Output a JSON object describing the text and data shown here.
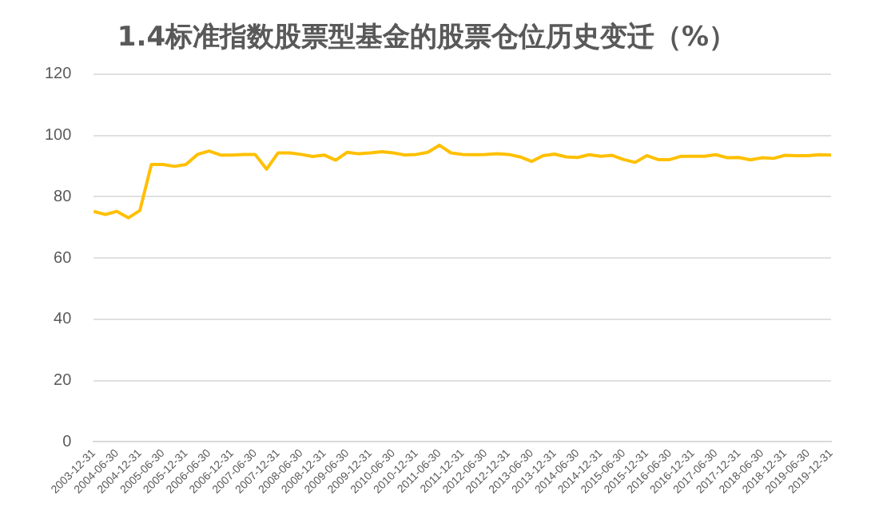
{
  "chart_data": {
    "type": "line",
    "title": "1.4标准指数股票型基金的股票仓位历史变迁（%）",
    "categories": [
      "2003-12-31",
      null,
      "2004-06-30",
      null,
      "2004-12-31",
      null,
      "2005-06-30",
      null,
      "2005-12-31",
      null,
      "2006-06-30",
      null,
      "2006-12-31",
      null,
      "2007-06-30",
      null,
      "2007-12-31",
      null,
      "2008-06-30",
      null,
      "2008-12-31",
      null,
      "2009-06-30",
      null,
      "2009-12-31",
      null,
      "2010-06-30",
      null,
      "2010-12-31",
      null,
      "2011-06-30",
      null,
      "2011-12-31",
      null,
      "2012-06-30",
      null,
      "2012-12-31",
      null,
      "2013-06-30",
      null,
      "2013-12-31",
      null,
      "2014-06-30",
      null,
      "2014-12-31",
      null,
      "2015-06-30",
      null,
      "2015-12-31",
      null,
      "2016-06-30",
      null,
      "2016-12-31",
      null,
      "2017-06-30",
      null,
      "2017-12-31",
      null,
      "2018-06-30",
      null,
      "2018-12-31",
      null,
      "2019-06-30",
      null,
      "2019-12-31"
    ],
    "series": [
      {
        "color": "#ffc000",
        "values": [
          75.2,
          74.2,
          75.2,
          73.1,
          75.5,
          90.5,
          90.5,
          89.9,
          90.5,
          93.8,
          94.9,
          93.6,
          93.6,
          93.8,
          93.8,
          89.0,
          94.3,
          94.3,
          93.8,
          93.1,
          93.6,
          91.9,
          94.5,
          94.0,
          94.3,
          94.7,
          94.3,
          93.6,
          93.8,
          94.5,
          96.8,
          94.3,
          93.8,
          93.7,
          93.8,
          94.0,
          93.8,
          93.0,
          91.5,
          93.4,
          93.9,
          93.0,
          92.8,
          93.7,
          93.2,
          93.5,
          92.1,
          91.2,
          93.4,
          92.1,
          92.1,
          93.2,
          93.2,
          93.2,
          93.7,
          92.7,
          92.8,
          92.0,
          92.7,
          92.5,
          93.5,
          93.4,
          93.4,
          93.7,
          93.6
        ]
      }
    ],
    "ylim": [
      0,
      120
    ],
    "yticks": [
      0,
      20,
      40,
      60,
      80,
      100,
      120
    ],
    "grid": "y",
    "legend": false,
    "marker": "none",
    "line_style": "solid"
  }
}
